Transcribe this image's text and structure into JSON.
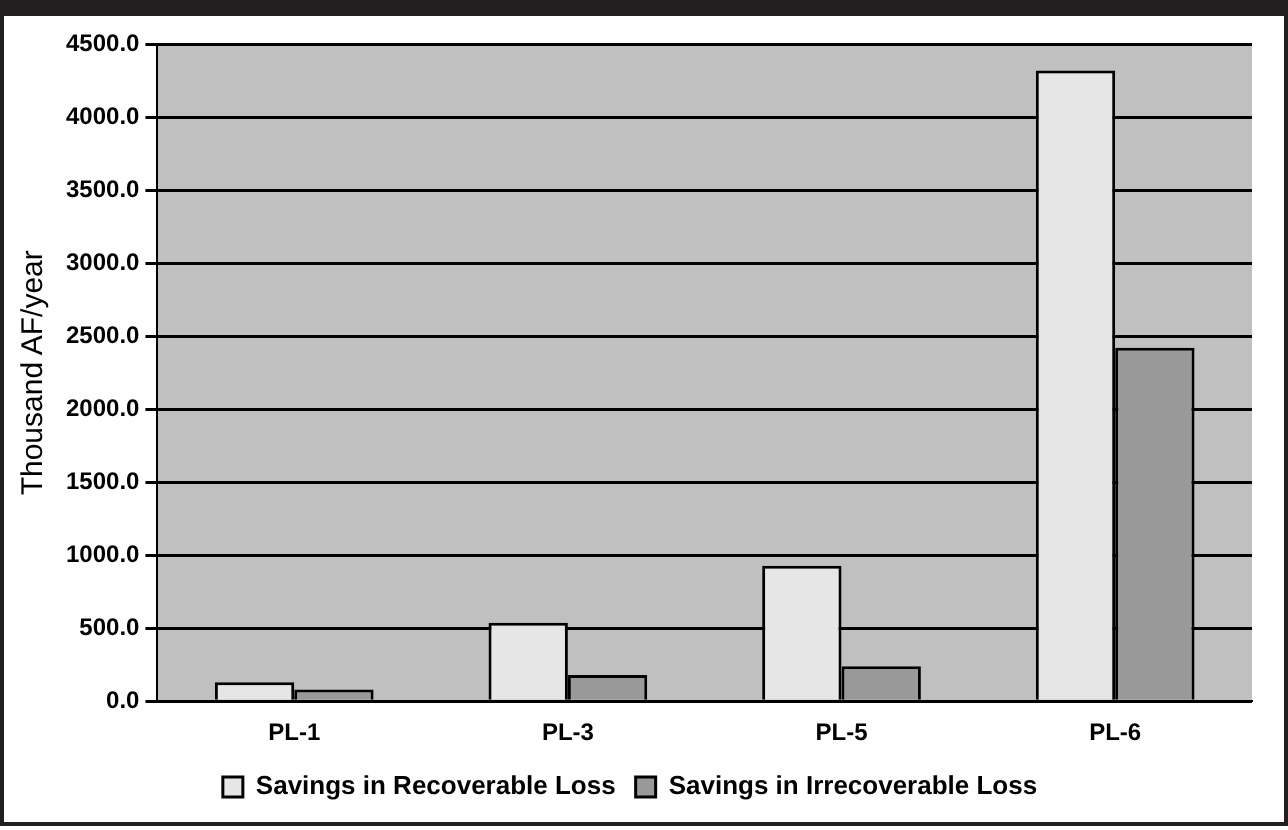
{
  "chart_data": {
    "type": "bar",
    "ylabel": "Thousand AF/year",
    "categories": [
      "PL-1",
      "PL-3",
      "PL-5",
      "PL-6"
    ],
    "series": [
      {
        "name": "Savings in Recoverable Loss",
        "color": "#e6e6e6",
        "values": [
          130,
          537,
          928,
          4321
        ]
      },
      {
        "name": "Savings in Irrecoverable Loss",
        "color": "#999999",
        "values": [
          81,
          179,
          239,
          2421
        ]
      }
    ],
    "ylim": [
      0,
      4500
    ],
    "yticks": [
      {
        "value": 0,
        "label": "0.0"
      },
      {
        "value": 500,
        "label": "500.0"
      },
      {
        "value": 1000,
        "label": "1000.0"
      },
      {
        "value": 1500,
        "label": "1500.0"
      },
      {
        "value": 2000,
        "label": "2000.0"
      },
      {
        "value": 2500,
        "label": "2500.0"
      },
      {
        "value": 3000,
        "label": "3000.0"
      },
      {
        "value": 3500,
        "label": "3500.0"
      },
      {
        "value": 4000,
        "label": "4000.0"
      },
      {
        "value": 4500,
        "label": "4500.0"
      }
    ],
    "grid": "y",
    "legend": "bottom"
  }
}
